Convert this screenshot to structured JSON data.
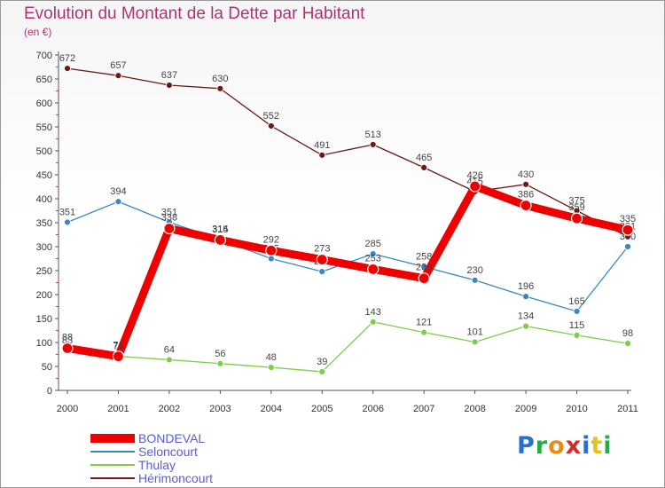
{
  "chart_data": {
    "type": "line",
    "title": "Evolution du Montant de la Dette par Habitant",
    "subtitle": "(en €)",
    "x": [
      "2000",
      "2001",
      "2002",
      "2003",
      "2004",
      "2005",
      "2006",
      "2007",
      "2008",
      "2009",
      "2010",
      "2011"
    ],
    "ylim": [
      0,
      700
    ],
    "yticks": [
      0,
      50,
      100,
      150,
      200,
      250,
      300,
      350,
      400,
      450,
      500,
      550,
      600,
      650,
      700
    ],
    "grid": false,
    "legend_position": "bottom-left",
    "series": [
      {
        "name": "Hérimoncourt",
        "color": "#6b1a1a",
        "values": [
          672,
          657,
          637,
          630,
          552,
          491,
          513,
          465,
          415,
          430,
          375,
          321
        ]
      },
      {
        "name": "Seloncourt",
        "color": "#3a87c8",
        "values": [
          351,
          394,
          351,
          315,
          275,
          248,
          285,
          258,
          230,
          196,
          165,
          300
        ]
      },
      {
        "name": "Thulay",
        "color": "#7fcc4c",
        "values": [
          83,
          71,
          64,
          56,
          48,
          39,
          143,
          121,
          101,
          134,
          115,
          98
        ]
      },
      {
        "name": "BONDEVAL",
        "color": "#ee0000",
        "values": [
          88,
          71,
          338,
          314,
          292,
          273,
          253,
          234,
          426,
          386,
          359,
          335
        ]
      }
    ]
  },
  "legend": {
    "items": [
      {
        "name": "BONDEVAL",
        "color": "#ee0000"
      },
      {
        "name": "Seloncourt",
        "color": "#3a87c8"
      },
      {
        "name": "Thulay",
        "color": "#7fcc4c"
      },
      {
        "name": "Hérimoncourt",
        "color": "#6b1a1a"
      }
    ]
  },
  "logo": {
    "letters": [
      "P",
      "r",
      "o",
      "x",
      "i",
      "t",
      "i"
    ],
    "colors": [
      "#2a6fc9",
      "#2aa84a",
      "#e88a1a",
      "#d62a2a",
      "#2a6fc9",
      "#e8c21a",
      "#2aa84a"
    ]
  }
}
